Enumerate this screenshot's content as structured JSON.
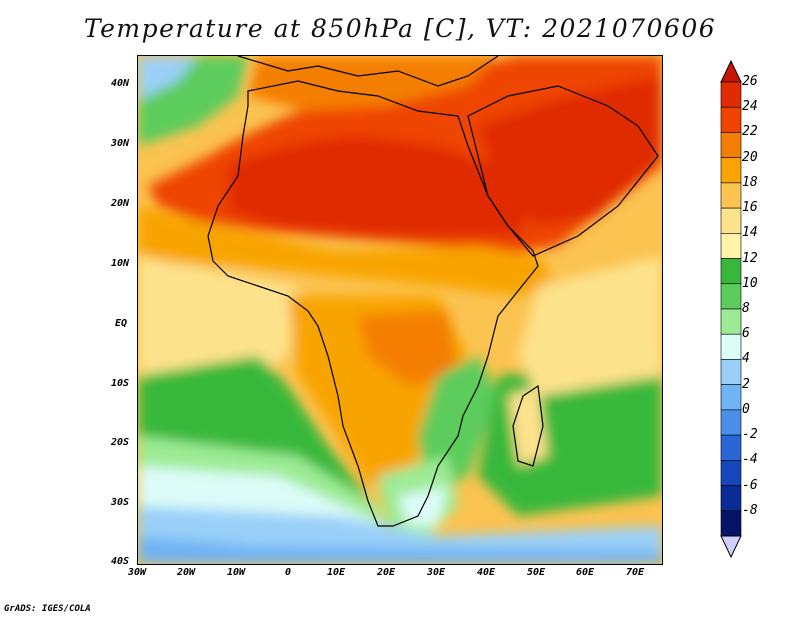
{
  "title": "Temperature at 850hPa [C], VT: 2021070606",
  "credit": "GrADS: IGES/COLA",
  "lat_labels": [
    "40N",
    "30N",
    "20N",
    "10N",
    "EQ",
    "10S",
    "20S",
    "30S",
    "40S"
  ],
  "lon_labels": [
    "30W",
    "20W",
    "10W",
    "0",
    "10E",
    "20E",
    "30E",
    "40E",
    "50E",
    "60E",
    "70E"
  ],
  "colorbar": {
    "labels": [
      "26",
      "24",
      "22",
      "20",
      "18",
      "16",
      "14",
      "12",
      "10",
      "8",
      "6",
      "4",
      "2",
      "0",
      "-2",
      "-4",
      "-6",
      "-8"
    ],
    "colors": [
      "#e02c00",
      "#ee4400",
      "#f47e00",
      "#f8a400",
      "#fbc350",
      "#fde28c",
      "#fef3a8",
      "#38b83a",
      "#5ccc5c",
      "#9ceb94",
      "#dcfcf8",
      "#9ad0f8",
      "#70b4f4",
      "#4a8ee8",
      "#2a66d4",
      "#1448bc",
      "#0a2c96",
      "#061466"
    ],
    "overflow_colors": {
      "high": "#c81400",
      "low": "#d0d0ff"
    }
  },
  "map": {
    "variable": "Temperature at 850hPa",
    "units": "C",
    "valid_time": "2021070606",
    "extent": {
      "lon_min": -30,
      "lon_max": 75,
      "lat_min": -40,
      "lat_max": 45
    }
  }
}
